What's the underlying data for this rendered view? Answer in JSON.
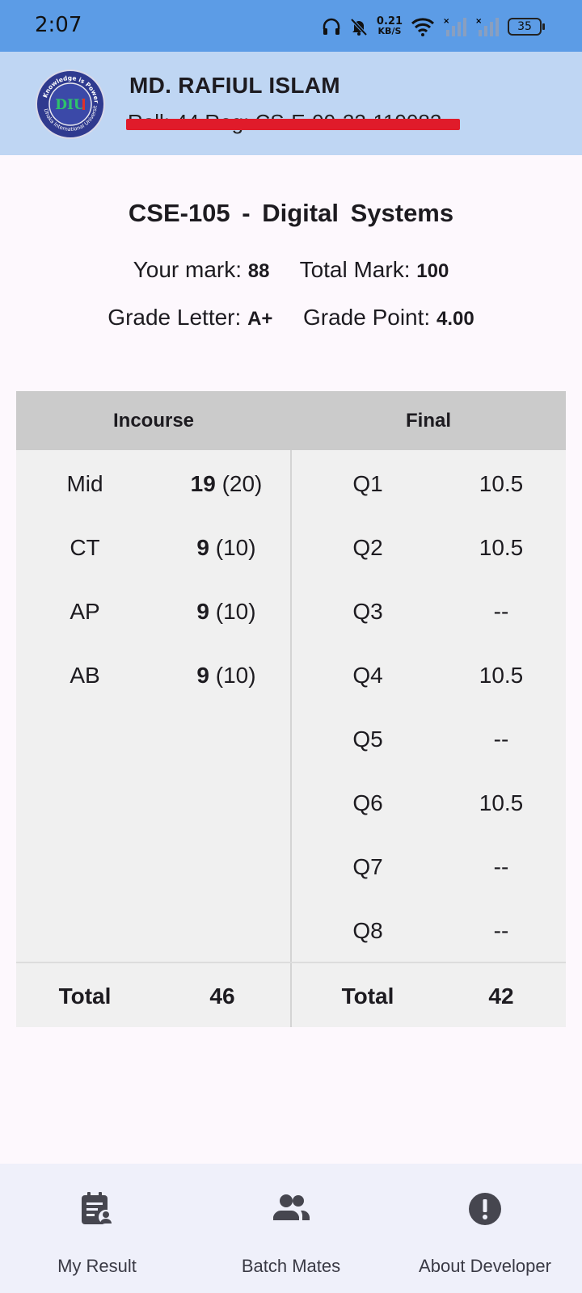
{
  "status_bar": {
    "time": "2:07",
    "net_speed_value": "0.21",
    "net_speed_unit": "KB/S",
    "battery": "35"
  },
  "header": {
    "name": "MD. RAFIUL ISLAM",
    "sub": "Roll: 44    Reg: CS-E-99-22-119082",
    "logo_top_text": "Knowledge is Power",
    "logo_mid_text": "DIU",
    "logo_bottom_text": "Dhaka International University"
  },
  "course": {
    "code": "CSE-105",
    "separator": "-",
    "title": "Digital Systems",
    "your_mark_label": "Your mark:",
    "your_mark": "88",
    "total_mark_label": "Total Mark:",
    "total_mark": "100",
    "grade_letter_label": "Grade Letter:",
    "grade_letter": "A+",
    "grade_point_label": "Grade Point:",
    "grade_point": "4.00"
  },
  "table": {
    "incourse_header": "Incourse",
    "final_header": "Final",
    "incourse_rows": [
      {
        "label": "Mid",
        "obtained": "19",
        "max": "(20)"
      },
      {
        "label": "CT",
        "obtained": "9",
        "max": "(10)"
      },
      {
        "label": "AP",
        "obtained": "9",
        "max": "(10)"
      },
      {
        "label": "AB",
        "obtained": "9",
        "max": "(10)"
      }
    ],
    "final_rows": [
      {
        "label": "Q1",
        "value": "10.5"
      },
      {
        "label": "Q2",
        "value": "10.5"
      },
      {
        "label": "Q3",
        "value": "--"
      },
      {
        "label": "Q4",
        "value": "10.5"
      },
      {
        "label": "Q5",
        "value": "--"
      },
      {
        "label": "Q6",
        "value": "10.5"
      },
      {
        "label": "Q7",
        "value": "--"
      },
      {
        "label": "Q8",
        "value": "--"
      }
    ],
    "incourse_total_label": "Total",
    "incourse_total": "46",
    "final_total_label": "Total",
    "final_total": "42"
  },
  "bottom_nav": [
    {
      "label": "My Result",
      "icon": "result-document-icon"
    },
    {
      "label": "Batch Mates",
      "icon": "people-icon"
    },
    {
      "label": "About Developer",
      "icon": "info-exclamation-icon"
    }
  ],
  "colors": {
    "status_bar": "#5c9ce6",
    "header": "#bfd6f3",
    "table_header": "#cbcbcb",
    "table_body": "#f0f0f0",
    "redaction": "#e01b2a",
    "nav_background": "#eff0fa"
  }
}
